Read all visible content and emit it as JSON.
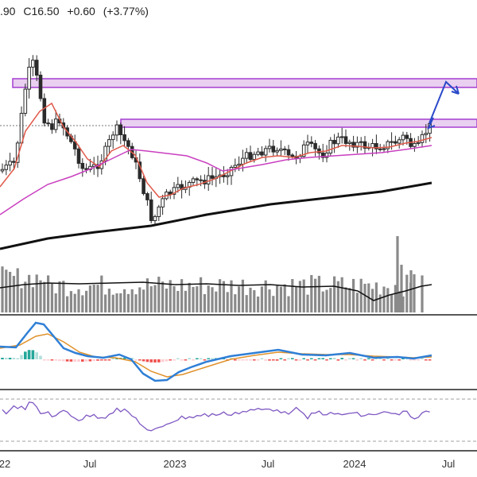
{
  "header": {
    "open_partial": ".90",
    "close": "C16.50",
    "change": "+0.60",
    "change_pct": "(+3.77%)"
  },
  "x_axis": {
    "tick_labels": [
      "22",
      "Jul",
      "2023",
      "Jul",
      "2024",
      "Jul"
    ]
  },
  "colors": {
    "candle": "#2b2b2b",
    "ma_fast": "#e05a4a",
    "ma_mid": "#c93fc0",
    "ma_slow": "#111111",
    "volume": "#8a8a8a",
    "volume_ma": "#111111",
    "zone_fill": "#e9cff0",
    "zone_stroke": "#a63fd0",
    "arrow": "#2a49c8",
    "macd_line": "#2f7fd6",
    "signal_line": "#e0912a",
    "hist_pos": "#26a69a",
    "hist_pos_light": "#b2dfdb",
    "hist_neg": "#ef5350",
    "hist_neg_light": "#ffcdd2",
    "rsi_line": "#7e57c2",
    "rsi_band": "#a0a0a0"
  },
  "chart_data": [
    {
      "type": "candlestick",
      "panel": "price",
      "close_value": 16.5,
      "change": 0.6,
      "change_pct": 3.77,
      "grid": false,
      "overlays": [
        "ma_fast",
        "ma_mid",
        "ma_slow"
      ],
      "resistance_zones": 2,
      "projection_arrow": true
    },
    {
      "type": "bar",
      "panel": "volume",
      "overlay": "volume_ma"
    },
    {
      "type": "line",
      "panel": "macd",
      "series": [
        "macd",
        "signal",
        "histogram"
      ]
    },
    {
      "type": "line",
      "panel": "rsi",
      "bands": [
        "upper",
        "lower"
      ]
    }
  ]
}
